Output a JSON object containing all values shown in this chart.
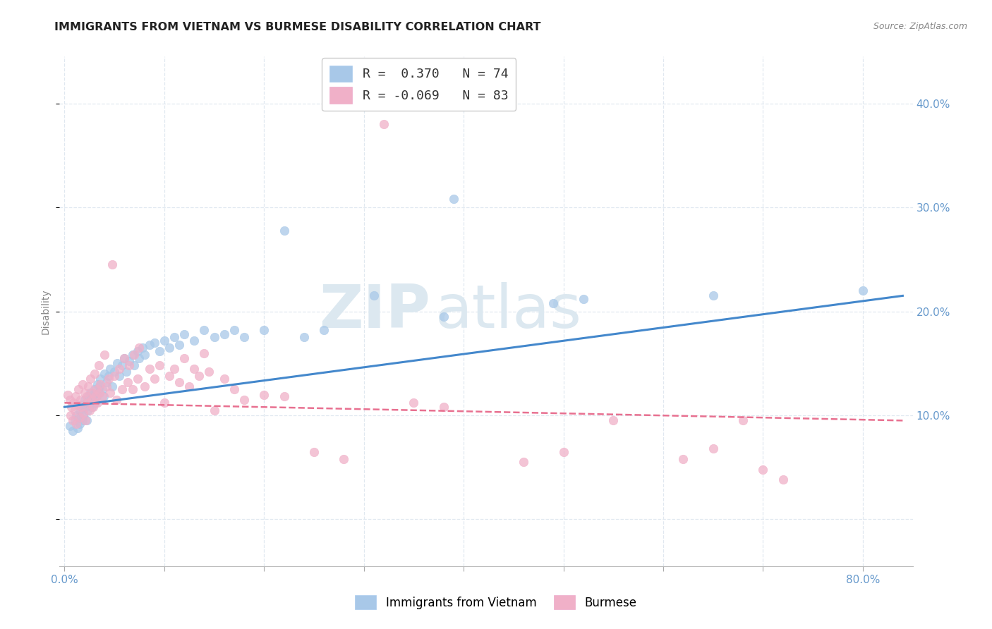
{
  "title": "IMMIGRANTS FROM VIETNAM VS BURMESE DISABILITY CORRELATION CHART",
  "source": "Source: ZipAtlas.com",
  "ylabel": "Disability",
  "x_tick_labels": [
    "0.0%",
    "",
    "",
    "",
    "",
    "",
    "",
    "",
    "80.0%"
  ],
  "x_ticks": [
    0.0,
    0.1,
    0.2,
    0.3,
    0.4,
    0.5,
    0.6,
    0.7,
    0.8
  ],
  "y_ticks": [
    0.0,
    0.1,
    0.2,
    0.3,
    0.4
  ],
  "y_tick_labels": [
    "",
    "10.0%",
    "20.0%",
    "30.0%",
    "40.0%"
  ],
  "xlim": [
    -0.005,
    0.85
  ],
  "ylim": [
    -0.045,
    0.445
  ],
  "blue_R": 0.37,
  "blue_N": 74,
  "pink_R": -0.069,
  "pink_N": 83,
  "blue_color": "#a8c8e8",
  "pink_color": "#f0b0c8",
  "blue_line_color": "#4488cc",
  "pink_line_color": "#e87090",
  "watermark_zip": "ZIP",
  "watermark_atlas": "atlas",
  "watermark_color": "#dce8f0",
  "background_color": "#ffffff",
  "grid_color": "#e0e8f0",
  "title_color": "#222222",
  "axis_label_color": "#6699cc",
  "legend_label_blue": "R =  0.370   N = 74",
  "legend_label_pink": "R = -0.069   N = 83",
  "bottom_legend_blue": "Immigrants from Vietnam",
  "bottom_legend_pink": "Burmese",
  "blue_line_x": [
    0.0,
    0.84
  ],
  "blue_line_y": [
    0.108,
    0.215
  ],
  "pink_line_x": [
    0.0,
    0.84
  ],
  "pink_line_y": [
    0.112,
    0.095
  ],
  "blue_scatter_x": [
    0.005,
    0.008,
    0.01,
    0.012,
    0.013,
    0.015,
    0.015,
    0.016,
    0.017,
    0.018,
    0.019,
    0.02,
    0.021,
    0.022,
    0.022,
    0.023,
    0.024,
    0.025,
    0.026,
    0.027,
    0.028,
    0.029,
    0.03,
    0.031,
    0.032,
    0.033,
    0.034,
    0.035,
    0.036,
    0.038,
    0.039,
    0.04,
    0.042,
    0.044,
    0.046,
    0.048,
    0.05,
    0.053,
    0.055,
    0.058,
    0.06,
    0.062,
    0.065,
    0.068,
    0.07,
    0.073,
    0.075,
    0.078,
    0.08,
    0.085,
    0.09,
    0.095,
    0.1,
    0.105,
    0.11,
    0.115,
    0.12,
    0.13,
    0.14,
    0.15,
    0.16,
    0.17,
    0.18,
    0.2,
    0.22,
    0.24,
    0.26,
    0.31,
    0.38,
    0.39,
    0.49,
    0.52,
    0.65,
    0.8
  ],
  "blue_scatter_y": [
    0.09,
    0.085,
    0.095,
    0.1,
    0.088,
    0.092,
    0.105,
    0.098,
    0.11,
    0.095,
    0.1,
    0.115,
    0.108,
    0.112,
    0.095,
    0.105,
    0.118,
    0.11,
    0.122,
    0.108,
    0.115,
    0.12,
    0.125,
    0.112,
    0.118,
    0.13,
    0.122,
    0.128,
    0.135,
    0.125,
    0.118,
    0.14,
    0.132,
    0.138,
    0.145,
    0.128,
    0.142,
    0.15,
    0.138,
    0.148,
    0.155,
    0.142,
    0.152,
    0.158,
    0.148,
    0.162,
    0.155,
    0.165,
    0.158,
    0.168,
    0.17,
    0.162,
    0.172,
    0.165,
    0.175,
    0.168,
    0.178,
    0.172,
    0.182,
    0.175,
    0.178,
    0.182,
    0.175,
    0.182,
    0.278,
    0.175,
    0.182,
    0.215,
    0.195,
    0.308,
    0.208,
    0.212,
    0.215,
    0.22
  ],
  "pink_scatter_x": [
    0.003,
    0.005,
    0.006,
    0.007,
    0.008,
    0.009,
    0.01,
    0.011,
    0.012,
    0.013,
    0.014,
    0.015,
    0.016,
    0.017,
    0.018,
    0.019,
    0.02,
    0.021,
    0.022,
    0.023,
    0.024,
    0.025,
    0.026,
    0.027,
    0.028,
    0.029,
    0.03,
    0.031,
    0.032,
    0.033,
    0.034,
    0.035,
    0.036,
    0.038,
    0.04,
    0.042,
    0.044,
    0.046,
    0.048,
    0.05,
    0.052,
    0.055,
    0.058,
    0.06,
    0.063,
    0.065,
    0.068,
    0.07,
    0.073,
    0.075,
    0.08,
    0.085,
    0.09,
    0.095,
    0.1,
    0.105,
    0.11,
    0.115,
    0.12,
    0.125,
    0.13,
    0.135,
    0.14,
    0.145,
    0.15,
    0.16,
    0.17,
    0.18,
    0.2,
    0.22,
    0.25,
    0.28,
    0.32,
    0.35,
    0.38,
    0.46,
    0.5,
    0.55,
    0.62,
    0.65,
    0.68,
    0.7,
    0.72
  ],
  "pink_scatter_y": [
    0.12,
    0.115,
    0.1,
    0.108,
    0.095,
    0.112,
    0.105,
    0.118,
    0.092,
    0.11,
    0.125,
    0.098,
    0.115,
    0.108,
    0.13,
    0.102,
    0.122,
    0.095,
    0.118,
    0.112,
    0.128,
    0.105,
    0.135,
    0.115,
    0.122,
    0.108,
    0.14,
    0.118,
    0.125,
    0.112,
    0.148,
    0.122,
    0.13,
    0.118,
    0.158,
    0.128,
    0.135,
    0.122,
    0.245,
    0.138,
    0.115,
    0.145,
    0.125,
    0.155,
    0.132,
    0.148,
    0.125,
    0.158,
    0.135,
    0.165,
    0.128,
    0.145,
    0.135,
    0.148,
    0.112,
    0.138,
    0.145,
    0.132,
    0.155,
    0.128,
    0.145,
    0.138,
    0.16,
    0.142,
    0.105,
    0.135,
    0.125,
    0.115,
    0.12,
    0.118,
    0.065,
    0.058,
    0.38,
    0.112,
    0.108,
    0.055,
    0.065,
    0.095,
    0.058,
    0.068,
    0.095,
    0.048,
    0.038
  ]
}
